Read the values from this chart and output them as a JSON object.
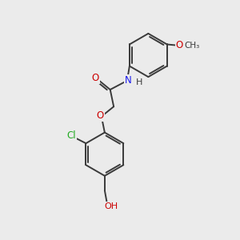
{
  "bg_color": "#ebebeb",
  "bond_color": "#3a3a3a",
  "bond_width": 1.4,
  "atom_colors": {
    "O": "#cc0000",
    "N": "#1a1aee",
    "Cl": "#22aa22",
    "H": "#3a3a3a",
    "C": "#3a3a3a"
  },
  "font_size": 8.5,
  "fig_size": [
    3.0,
    3.0
  ],
  "dpi": 100
}
